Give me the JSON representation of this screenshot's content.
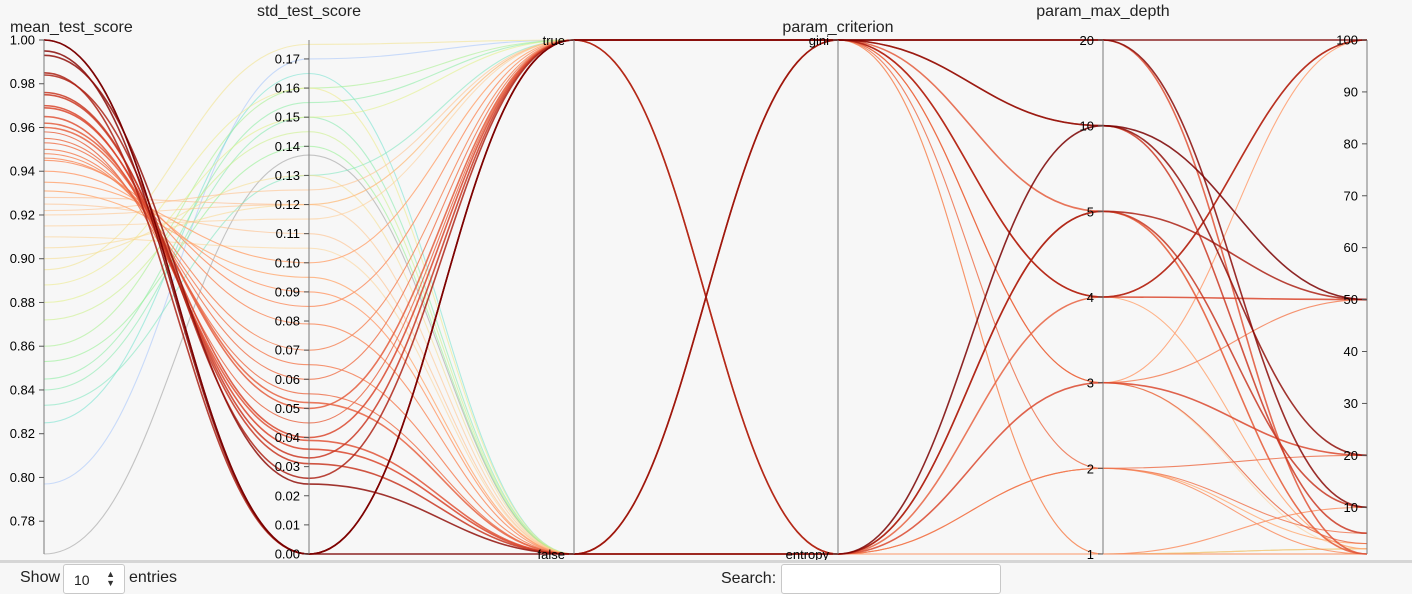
{
  "chart_data": {
    "type": "parallel_coordinates",
    "axes": [
      {
        "name": "mean_test_score",
        "type": "numeric",
        "range": [
          0.765,
          1.0
        ],
        "ticks": [
          "0.78",
          "0.80",
          "0.82",
          "0.84",
          "0.86",
          "0.88",
          "0.90",
          "0.92",
          "0.94",
          "0.96",
          "0.98",
          "1.00"
        ],
        "tick_values": [
          0.78,
          0.8,
          0.82,
          0.84,
          0.86,
          0.88,
          0.9,
          0.92,
          0.94,
          0.96,
          0.98,
          1.0
        ]
      },
      {
        "name": "std_test_score",
        "type": "numeric",
        "range": [
          0,
          0.1765
        ],
        "ticks": [
          "0.00",
          "0.01",
          "0.02",
          "0.03",
          "0.04",
          "0.05",
          "0.06",
          "0.07",
          "0.08",
          "0.09",
          "0.10",
          "0.11",
          "0.12",
          "0.13",
          "0.14",
          "0.15",
          "0.16",
          "0.17"
        ],
        "tick_values": [
          0,
          0.01,
          0.02,
          0.03,
          0.04,
          0.05,
          0.06,
          0.07,
          0.08,
          0.09,
          0.1,
          0.11,
          0.12,
          0.13,
          0.14,
          0.15,
          0.16,
          0.17
        ]
      },
      {
        "name": "",
        "type": "categorical",
        "categories": [
          "true",
          "false"
        ]
      },
      {
        "name": "param_criterion",
        "type": "categorical",
        "categories": [
          "gini",
          "entropy"
        ]
      },
      {
        "name": "param_max_depth",
        "type": "categorical",
        "categories": [
          "20",
          "10",
          "5",
          "4",
          "3",
          "2",
          "1"
        ]
      },
      {
        "name": "",
        "type": "numeric",
        "range": [
          1,
          100
        ],
        "ticks": [
          "10",
          "20",
          "30",
          "40",
          "50",
          "60",
          "70",
          "80",
          "90",
          "100"
        ],
        "tick_values": [
          10,
          20,
          30,
          40,
          50,
          60,
          70,
          80,
          90,
          100
        ]
      }
    ],
    "records": [
      [
        1.0,
        0.0,
        "true",
        "gini",
        "20",
        100
      ],
      [
        1.0,
        0.0,
        "false",
        "entropy",
        "10",
        50
      ],
      [
        0.995,
        0.0,
        "true",
        "gini",
        "20",
        10
      ],
      [
        0.993,
        0.024,
        "false",
        "gini",
        "10",
        20
      ],
      [
        0.985,
        0.0,
        "true",
        "entropy",
        "5",
        50
      ],
      [
        0.984,
        0.026,
        "true",
        "gini",
        "4",
        100
      ],
      [
        0.976,
        0.031,
        "false",
        "entropy",
        "5",
        10
      ],
      [
        0.975,
        0.033,
        "true",
        "gini",
        "10",
        5
      ],
      [
        0.97,
        0.036,
        "false",
        "gini",
        "4",
        50
      ],
      [
        0.969,
        0.04,
        "true",
        "entropy",
        "3",
        20
      ],
      [
        0.965,
        0.039,
        "false",
        "gini",
        "20",
        1
      ],
      [
        0.962,
        0.05,
        "true",
        "gini",
        "5",
        1
      ],
      [
        0.96,
        0.052,
        "false",
        "entropy",
        "4",
        100
      ],
      [
        0.958,
        0.045,
        "true",
        "gini",
        "3",
        3
      ],
      [
        0.955,
        0.055,
        "false",
        "gini",
        "2",
        20
      ],
      [
        0.953,
        0.06,
        "true",
        "entropy",
        "2",
        5
      ],
      [
        0.95,
        0.065,
        "false",
        "gini",
        "3",
        50
      ],
      [
        0.948,
        0.07,
        "true",
        "gini",
        "1",
        1
      ],
      [
        0.946,
        0.079,
        "false",
        "entropy",
        "2",
        1
      ],
      [
        0.945,
        0.085,
        "true",
        "entropy",
        "1",
        10
      ],
      [
        0.94,
        0.09,
        "false",
        "gini",
        "3",
        100
      ],
      [
        0.935,
        0.1,
        "true",
        "gini",
        "4",
        2
      ],
      [
        0.931,
        0.095,
        "false",
        "entropy",
        "2",
        3
      ],
      [
        0.928,
        0.12,
        "true",
        "entropy",
        "1",
        1
      ],
      [
        0.925,
        0.11,
        "false",
        "gini",
        "1",
        2
      ],
      [
        0.922,
        0.125,
        "true",
        "entropy",
        "5",
        1
      ],
      [
        0.92,
        0.12,
        "false",
        "entropy",
        "1",
        1
      ],
      [
        0.915,
        0.115,
        "true",
        "gini",
        "3",
        2
      ],
      [
        0.91,
        0.105,
        "false",
        "entropy",
        "1",
        1
      ],
      [
        0.905,
        0.12,
        "true",
        "entropy",
        "1",
        2
      ],
      [
        0.9,
        0.13,
        "false",
        "entropy",
        "1",
        1
      ],
      [
        0.895,
        0.175,
        "true",
        "entropy",
        "1",
        1
      ],
      [
        0.888,
        0.16,
        "false",
        "entropy",
        "1",
        2
      ],
      [
        0.88,
        0.15,
        "true",
        "entropy",
        "1",
        1
      ],
      [
        0.872,
        0.145,
        "false",
        "entropy",
        "1",
        1
      ],
      [
        0.86,
        0.16,
        "true",
        "entropy",
        "1",
        1
      ],
      [
        0.853,
        0.14,
        "false",
        "entropy",
        "1",
        2
      ],
      [
        0.845,
        0.155,
        "true",
        "entropy",
        "1",
        1
      ],
      [
        0.84,
        0.15,
        "false",
        "entropy",
        "1",
        1
      ],
      [
        0.833,
        0.13,
        "true",
        "entropy",
        "1",
        1
      ],
      [
        0.825,
        0.165,
        "false",
        "entropy",
        "1",
        1
      ],
      [
        0.797,
        0.17,
        "true",
        "entropy",
        "1",
        1
      ],
      [
        0.765,
        0.137,
        "false",
        "entropy",
        "1",
        1
      ]
    ],
    "color_scale": {
      "by": "mean_test_score",
      "stops": [
        "#999999",
        "#a8c0ff",
        "#6fe0d0",
        "#8ef08c",
        "#e8f080",
        "#ffd090",
        "#ff9c6c",
        "#d9432a",
        "#7a0000"
      ]
    }
  },
  "controls": {
    "show_label": "Show",
    "entries_value": "10",
    "entries_label": "entries",
    "search_label": "Search:",
    "search_value": ""
  }
}
